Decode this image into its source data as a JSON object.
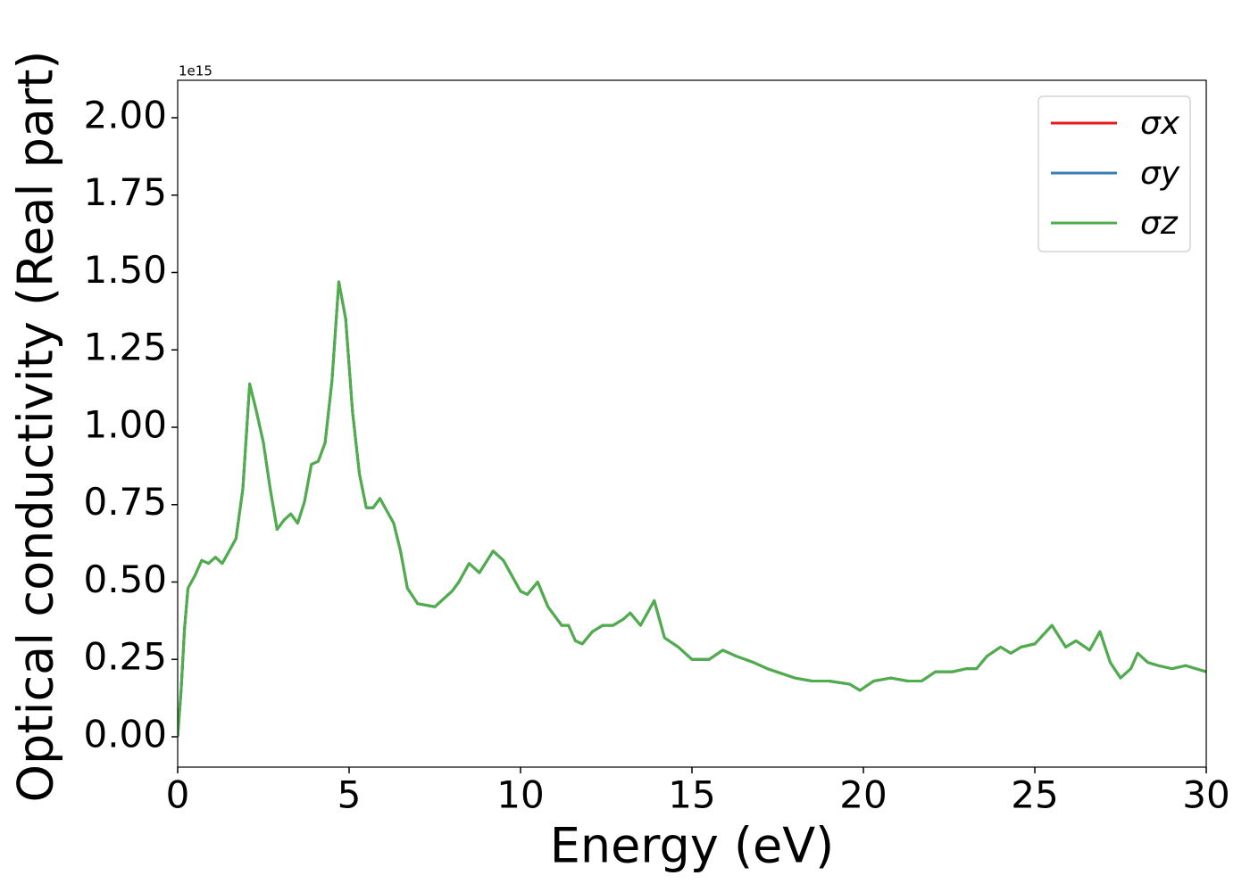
{
  "chart_data": {
    "type": "line",
    "xlabel": "Energy (eV)",
    "ylabel": "Optical conductivity (Real part)",
    "y_offset_label": "1e15",
    "x": [
      0,
      0.1,
      0.2,
      0.3,
      0.5,
      0.7,
      0.9,
      1.1,
      1.3,
      1.5,
      1.7,
      1.9,
      2.1,
      2.3,
      2.5,
      2.7,
      2.9,
      3.1,
      3.3,
      3.5,
      3.7,
      3.9,
      4.1,
      4.3,
      4.5,
      4.7,
      4.9,
      5.1,
      5.3,
      5.5,
      5.7,
      5.9,
      6.1,
      6.3,
      6.5,
      6.7,
      7.0,
      7.5,
      8.0,
      8.2,
      8.5,
      8.8,
      9.2,
      9.5,
      10.0,
      10.2,
      10.5,
      10.8,
      11.2,
      11.4,
      11.6,
      11.8,
      12.1,
      12.4,
      12.7,
      13.0,
      13.2,
      13.5,
      13.9,
      14.2,
      14.6,
      15.0,
      15.5,
      15.9,
      16.3,
      16.8,
      17.2,
      18.0,
      18.5,
      19.0,
      19.6,
      19.9,
      20.3,
      20.8,
      21.3,
      21.7,
      22.1,
      22.6,
      23.0,
      23.3,
      23.6,
      24.0,
      24.3,
      24.6,
      25.0,
      25.5,
      25.9,
      26.2,
      26.6,
      26.9,
      27.2,
      27.5,
      27.8,
      28.0,
      28.3,
      28.6,
      29.0,
      29.4,
      29.7,
      30
    ],
    "series": [
      {
        "name": "σx",
        "color": "#e41a1c",
        "values": [
          0.0,
          0.15,
          0.35,
          0.48,
          0.52,
          0.57,
          0.56,
          0.58,
          0.56,
          0.6,
          0.64,
          0.8,
          1.14,
          1.05,
          0.95,
          0.8,
          0.67,
          0.7,
          0.72,
          0.69,
          0.76,
          0.88,
          0.89,
          0.95,
          1.15,
          1.47,
          1.35,
          1.05,
          0.85,
          0.74,
          0.74,
          0.77,
          0.73,
          0.69,
          0.6,
          0.48,
          0.43,
          0.42,
          0.47,
          0.5,
          0.56,
          0.53,
          0.6,
          0.57,
          0.47,
          0.46,
          0.5,
          0.42,
          0.36,
          0.36,
          0.31,
          0.3,
          0.34,
          0.36,
          0.36,
          0.38,
          0.4,
          0.36,
          0.44,
          0.32,
          0.29,
          0.25,
          0.25,
          0.28,
          0.26,
          0.24,
          0.22,
          0.19,
          0.18,
          0.18,
          0.17,
          0.15,
          0.18,
          0.19,
          0.18,
          0.18,
          0.21,
          0.21,
          0.22,
          0.22,
          0.26,
          0.29,
          0.27,
          0.29,
          0.3,
          0.36,
          0.29,
          0.31,
          0.28,
          0.34,
          0.24,
          0.19,
          0.22,
          0.27,
          0.24,
          0.23,
          0.22,
          0.23,
          0.22,
          0.21
        ]
      },
      {
        "name": "σy",
        "color": "#377eb8",
        "values": [
          0.0,
          0.15,
          0.35,
          0.48,
          0.52,
          0.57,
          0.56,
          0.58,
          0.56,
          0.6,
          0.64,
          0.8,
          1.14,
          1.05,
          0.95,
          0.8,
          0.67,
          0.7,
          0.72,
          0.69,
          0.76,
          0.88,
          0.89,
          0.95,
          1.15,
          1.47,
          1.35,
          1.05,
          0.85,
          0.74,
          0.74,
          0.77,
          0.73,
          0.69,
          0.6,
          0.48,
          0.43,
          0.42,
          0.47,
          0.5,
          0.56,
          0.53,
          0.6,
          0.57,
          0.47,
          0.46,
          0.5,
          0.42,
          0.36,
          0.36,
          0.31,
          0.3,
          0.34,
          0.36,
          0.36,
          0.38,
          0.4,
          0.36,
          0.44,
          0.32,
          0.29,
          0.25,
          0.25,
          0.28,
          0.26,
          0.24,
          0.22,
          0.19,
          0.18,
          0.18,
          0.17,
          0.15,
          0.18,
          0.19,
          0.18,
          0.18,
          0.21,
          0.21,
          0.22,
          0.22,
          0.26,
          0.29,
          0.27,
          0.29,
          0.3,
          0.36,
          0.29,
          0.31,
          0.28,
          0.34,
          0.24,
          0.19,
          0.22,
          0.27,
          0.24,
          0.23,
          0.22,
          0.23,
          0.22,
          0.21
        ]
      },
      {
        "name": "σz",
        "color": "#4daf4a",
        "values": [
          0.0,
          0.15,
          0.35,
          0.48,
          0.52,
          0.57,
          0.56,
          0.58,
          0.56,
          0.6,
          0.64,
          0.8,
          1.14,
          1.05,
          0.95,
          0.8,
          0.67,
          0.7,
          0.72,
          0.69,
          0.76,
          0.88,
          0.89,
          0.95,
          1.15,
          1.47,
          1.35,
          1.05,
          0.85,
          0.74,
          0.74,
          0.77,
          0.73,
          0.69,
          0.6,
          0.48,
          0.43,
          0.42,
          0.47,
          0.5,
          0.56,
          0.53,
          0.6,
          0.57,
          0.47,
          0.46,
          0.5,
          0.42,
          0.36,
          0.36,
          0.31,
          0.3,
          0.34,
          0.36,
          0.36,
          0.38,
          0.4,
          0.36,
          0.44,
          0.32,
          0.29,
          0.25,
          0.25,
          0.28,
          0.26,
          0.24,
          0.22,
          0.19,
          0.18,
          0.18,
          0.17,
          0.15,
          0.18,
          0.19,
          0.18,
          0.18,
          0.21,
          0.21,
          0.22,
          0.22,
          0.26,
          0.29,
          0.27,
          0.29,
          0.3,
          0.36,
          0.29,
          0.31,
          0.28,
          0.34,
          0.24,
          0.19,
          0.22,
          0.27,
          0.24,
          0.23,
          0.22,
          0.23,
          0.22,
          0.21
        ]
      }
    ],
    "xlim": [
      0,
      30
    ],
    "xticks": [
      0,
      5,
      10,
      15,
      20,
      25,
      30
    ],
    "ylim": [
      -0.098,
      2.121
    ],
    "yticks": [
      {
        "value": 0,
        "label": "0.00"
      },
      {
        "value": 0.25,
        "label": "0.25"
      },
      {
        "value": 0.5,
        "label": "0.50"
      },
      {
        "value": 0.75,
        "label": "0.75"
      },
      {
        "value": 1,
        "label": "1.00"
      },
      {
        "value": 1.25,
        "label": "1.25"
      },
      {
        "value": 1.5,
        "label": "1.50"
      },
      {
        "value": 1.75,
        "label": "1.75"
      },
      {
        "value": 2,
        "label": "2.00"
      }
    ],
    "grid": false,
    "legend": "upper right"
  }
}
